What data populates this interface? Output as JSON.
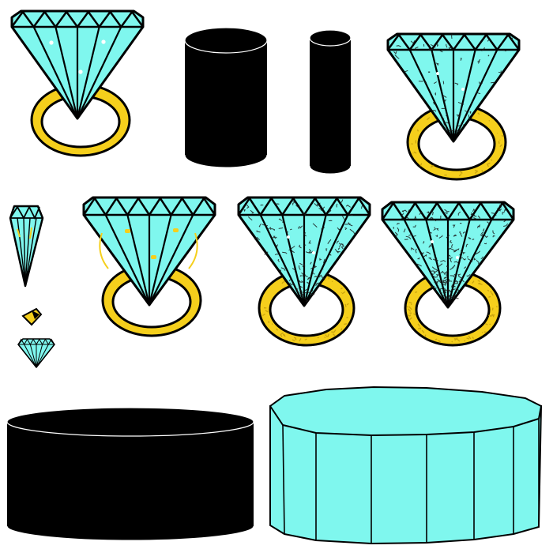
{
  "sprite_sheet": {
    "background": "#ffffff",
    "colors": {
      "gem": "#7ff7ee",
      "gem_dark": "#5fd8d0",
      "gold": "#f5cf1c",
      "gold_dark": "#c9a30e",
      "outline": "#000000",
      "sparkle": "#ffffff",
      "crack": "#1a1a1a",
      "fleck": "#f5cf1c"
    },
    "sprites": [
      {
        "name": "diamond-ring-clean-sprite",
        "kind": "ring",
        "variant": "sparkle"
      },
      {
        "name": "black-cylinder-tall-sprite",
        "kind": "cylinder"
      },
      {
        "name": "black-cylinder-narrow-sprite",
        "kind": "cylinder"
      },
      {
        "name": "diamond-ring-cracked-light-sprite",
        "kind": "ring",
        "variant": "cracked-light"
      },
      {
        "name": "diamond-shard-sprite",
        "kind": "shard"
      },
      {
        "name": "gold-fragment-sprite",
        "kind": "fragment"
      },
      {
        "name": "diamond-ring-gold-flecks-sprite",
        "kind": "ring",
        "variant": "flecks"
      },
      {
        "name": "diamond-ring-cracked-medium-sprite",
        "kind": "ring",
        "variant": "cracked-medium"
      },
      {
        "name": "diamond-ring-cracked-heavy-sprite",
        "kind": "ring",
        "variant": "cracked-heavy"
      },
      {
        "name": "small-diamond-icon",
        "kind": "gem-small"
      },
      {
        "name": "black-cylinder-wide-sprite",
        "kind": "cylinder"
      },
      {
        "name": "cyan-prism-platform-sprite",
        "kind": "prism"
      }
    ]
  }
}
